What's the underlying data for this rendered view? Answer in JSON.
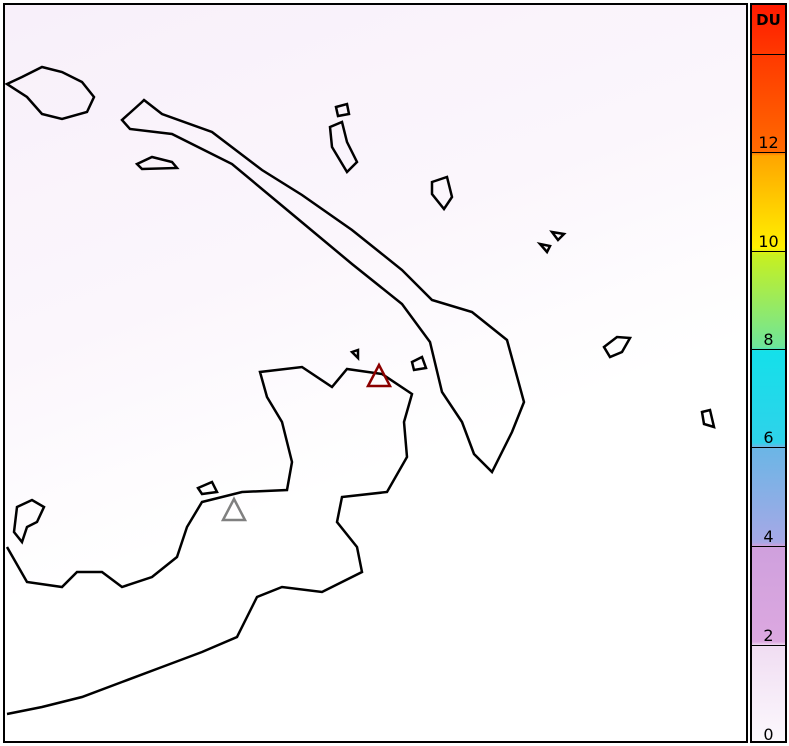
{
  "colorbar": {
    "unit": "DU",
    "ticks": [
      "0",
      "2",
      "4",
      "6",
      "8",
      "10",
      "12"
    ],
    "range": [
      0,
      15
    ],
    "colors": [
      "#fcf8fd",
      "#dca8e0",
      "#6ab6e6",
      "#14e0ea",
      "#6ee59a",
      "#fff000",
      "#ff6a00",
      "#ff1a00"
    ]
  },
  "markers": [
    {
      "name": "active-volcano",
      "color": "#8b0000"
    },
    {
      "name": "volcano",
      "color": "#808080"
    }
  ],
  "background_color": "#f8f0fa"
}
